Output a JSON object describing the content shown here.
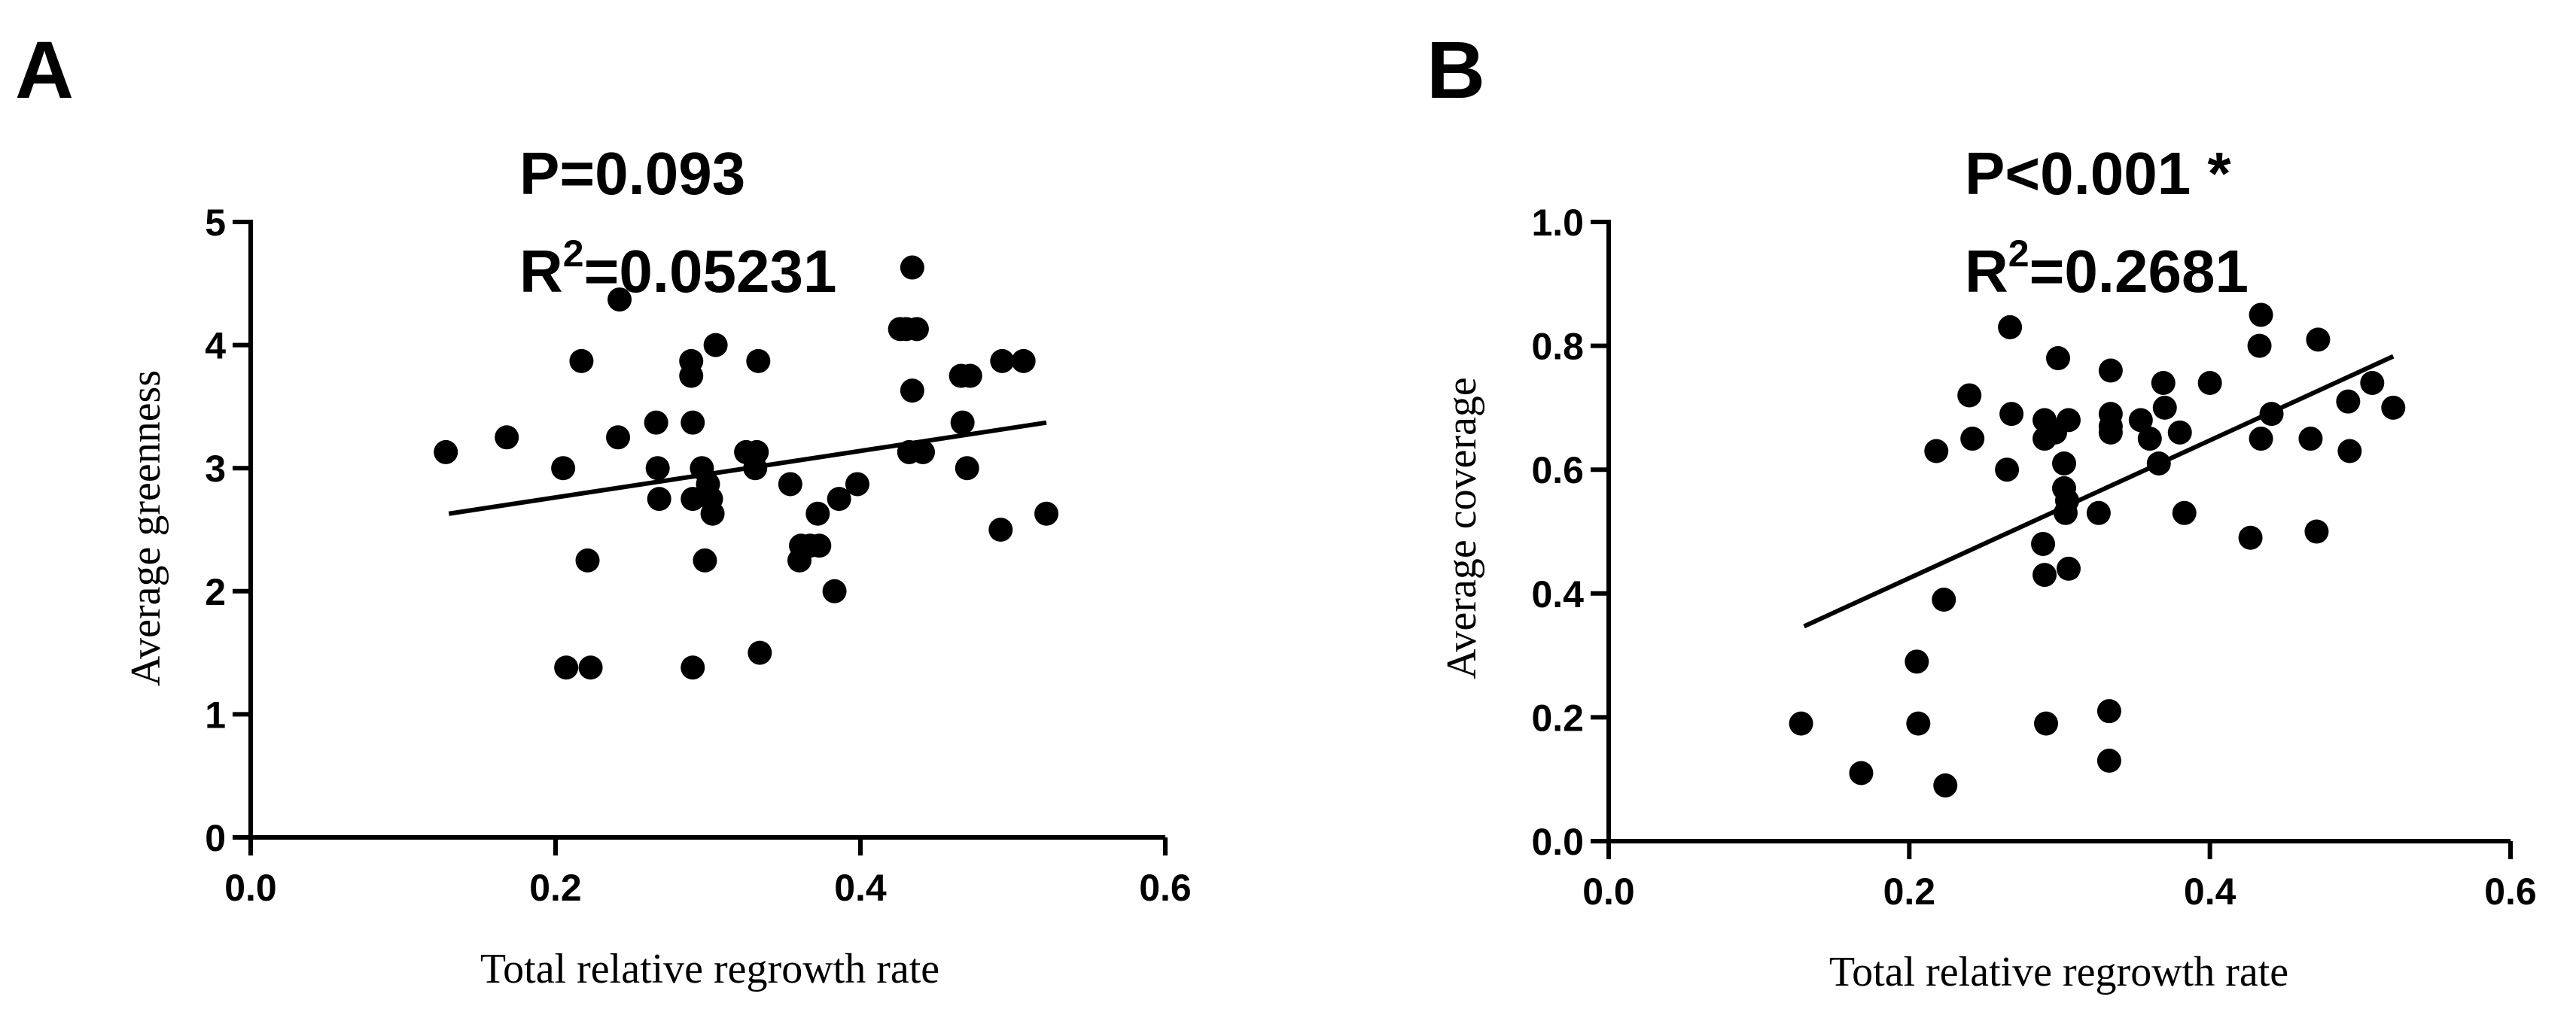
{
  "chart_data": [
    {
      "panel": "A",
      "type": "scatter",
      "stat_p": "P=0.093",
      "stat_r2_base": "R",
      "stat_r2_sup": "2",
      "stat_r2_value": "=0.05231",
      "xlabel": "Total relative regrowth rate",
      "ylabel": "Average greenness",
      "xlim": [
        0,
        0.6
      ],
      "ylim": [
        0,
        5
      ],
      "xticks": [
        0.0,
        0.2,
        0.4,
        0.6
      ],
      "xtick_labels": [
        "0.0",
        "0.2",
        "0.4",
        "0.6"
      ],
      "yticks": [
        0,
        1,
        2,
        3,
        4,
        5
      ],
      "ytick_labels": [
        "0",
        "1",
        "2",
        "3",
        "4",
        "5"
      ],
      "regression": {
        "x": [
          0.13,
          0.522
        ],
        "y": [
          2.63,
          3.37
        ]
      },
      "x": [
        0.128,
        0.168,
        0.205,
        0.207,
        0.217,
        0.221,
        0.223,
        0.241,
        0.242,
        0.266,
        0.267,
        0.268,
        0.289,
        0.289,
        0.29,
        0.29,
        0.29,
        0.296,
        0.298,
        0.3,
        0.302,
        0.303,
        0.305,
        0.325,
        0.331,
        0.332,
        0.333,
        0.334,
        0.354,
        0.36,
        0.361,
        0.367,
        0.372,
        0.373,
        0.383,
        0.386,
        0.398,
        0.426,
        0.43,
        0.432,
        0.434,
        0.434,
        0.437,
        0.441,
        0.466,
        0.467,
        0.47,
        0.472,
        0.492,
        0.493,
        0.507,
        0.522
      ],
      "y": [
        3.13,
        3.25,
        3.0,
        1.38,
        3.87,
        2.25,
        1.38,
        3.25,
        4.37,
        3.37,
        3.0,
        2.75,
        3.87,
        3.75,
        3.37,
        2.75,
        1.38,
        3.0,
        2.25,
        2.87,
        2.75,
        2.63,
        4.0,
        3.13,
        3.0,
        3.13,
        3.87,
        1.5,
        2.87,
        2.25,
        2.37,
        2.37,
        2.63,
        2.37,
        2.0,
        2.75,
        2.87,
        4.13,
        4.13,
        3.13,
        4.63,
        3.63,
        4.13,
        3.13,
        3.75,
        3.37,
        3.0,
        3.75,
        2.5,
        3.87,
        3.87,
        2.63
      ]
    },
    {
      "panel": "B",
      "type": "scatter",
      "stat_p": "P<0.001 *",
      "stat_r2_base": "R",
      "stat_r2_sup": "2",
      "stat_r2_value": "=0.2681",
      "xlabel": "Total relative regrowth rate",
      "ylabel": "Average coverage",
      "xlim": [
        0,
        0.6
      ],
      "ylim": [
        0,
        1.0
      ],
      "xticks": [
        0.0,
        0.2,
        0.4,
        0.6
      ],
      "xtick_labels": [
        "0.0",
        "0.2",
        "0.4",
        "0.6"
      ],
      "yticks": [
        0.0,
        0.2,
        0.4,
        0.6,
        0.8,
        1.0
      ],
      "ytick_labels": [
        "0.0",
        "0.2",
        "0.4",
        "0.6",
        "0.8",
        "1.0"
      ],
      "regression": {
        "x": [
          0.13,
          0.522
        ],
        "y": [
          0.347,
          0.783
        ]
      },
      "x": [
        0.128,
        0.168,
        0.205,
        0.206,
        0.218,
        0.223,
        0.224,
        0.24,
        0.242,
        0.265,
        0.267,
        0.268,
        0.289,
        0.29,
        0.29,
        0.29,
        0.291,
        0.297,
        0.299,
        0.303,
        0.303,
        0.304,
        0.305,
        0.306,
        0.306,
        0.326,
        0.333,
        0.333,
        0.334,
        0.334,
        0.334,
        0.334,
        0.354,
        0.36,
        0.366,
        0.369,
        0.37,
        0.38,
        0.383,
        0.4,
        0.427,
        0.433,
        0.434,
        0.434,
        0.441,
        0.467,
        0.471,
        0.472,
        0.492,
        0.493,
        0.508,
        0.522
      ],
      "y": [
        0.19,
        0.11,
        0.29,
        0.19,
        0.63,
        0.39,
        0.09,
        0.72,
        0.65,
        0.6,
        0.83,
        0.69,
        0.48,
        0.43,
        0.65,
        0.68,
        0.19,
        0.66,
        0.78,
        0.61,
        0.57,
        0.53,
        0.55,
        0.44,
        0.68,
        0.53,
        0.21,
        0.13,
        0.76,
        0.69,
        0.67,
        0.66,
        0.68,
        0.65,
        0.61,
        0.74,
        0.7,
        0.66,
        0.53,
        0.74,
        0.49,
        0.8,
        0.85,
        0.65,
        0.69,
        0.65,
        0.5,
        0.81,
        0.71,
        0.63,
        0.74,
        0.7
      ]
    }
  ]
}
